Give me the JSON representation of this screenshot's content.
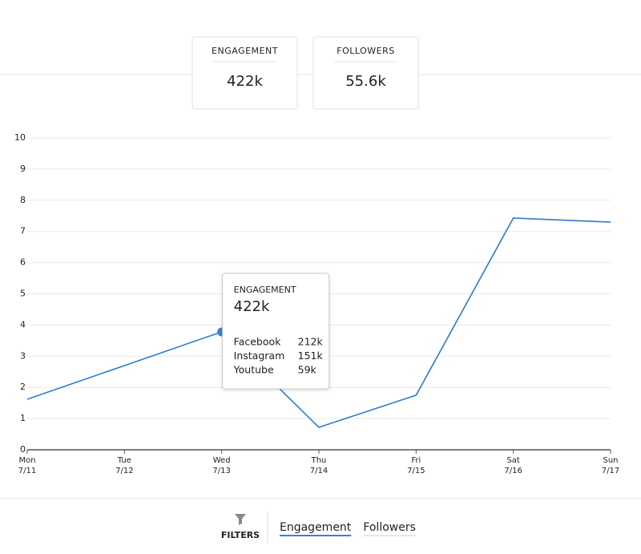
{
  "cards": [
    {
      "label": "ENGAGEMENT",
      "value": "422k",
      "color": "#3b82d0"
    },
    {
      "label": "FOLLOWERS",
      "value": "55.6k",
      "color": "#f0a01e"
    }
  ],
  "chart_data": {
    "type": "line",
    "categories": [
      "Mon",
      "Tue",
      "Wed",
      "Thu",
      "Fri",
      "Sat",
      "Sun"
    ],
    "category_dates": [
      "7/11",
      "7/12",
      "7/13",
      "7/14",
      "7/15",
      "7/16",
      "7/17"
    ],
    "values": [
      1.62,
      2.7,
      3.78,
      0.72,
      1.75,
      7.43,
      7.3
    ],
    "color": "#2f7bc8",
    "ylim": [
      0,
      10
    ],
    "yticks": [
      0,
      1,
      2,
      3,
      4,
      5,
      6,
      7,
      8,
      9,
      10
    ],
    "grid": true
  },
  "tooltip": {
    "index": 2,
    "title": "ENGAGEMENT",
    "total": "422k",
    "rows": [
      [
        "Facebook",
        "212k"
      ],
      [
        "Instagram",
        "151k"
      ],
      [
        "Youtube",
        "59k"
      ]
    ]
  },
  "footer": {
    "filters": "FILTERS",
    "tabs": [
      "Engagement",
      "Followers"
    ],
    "active": 0
  }
}
